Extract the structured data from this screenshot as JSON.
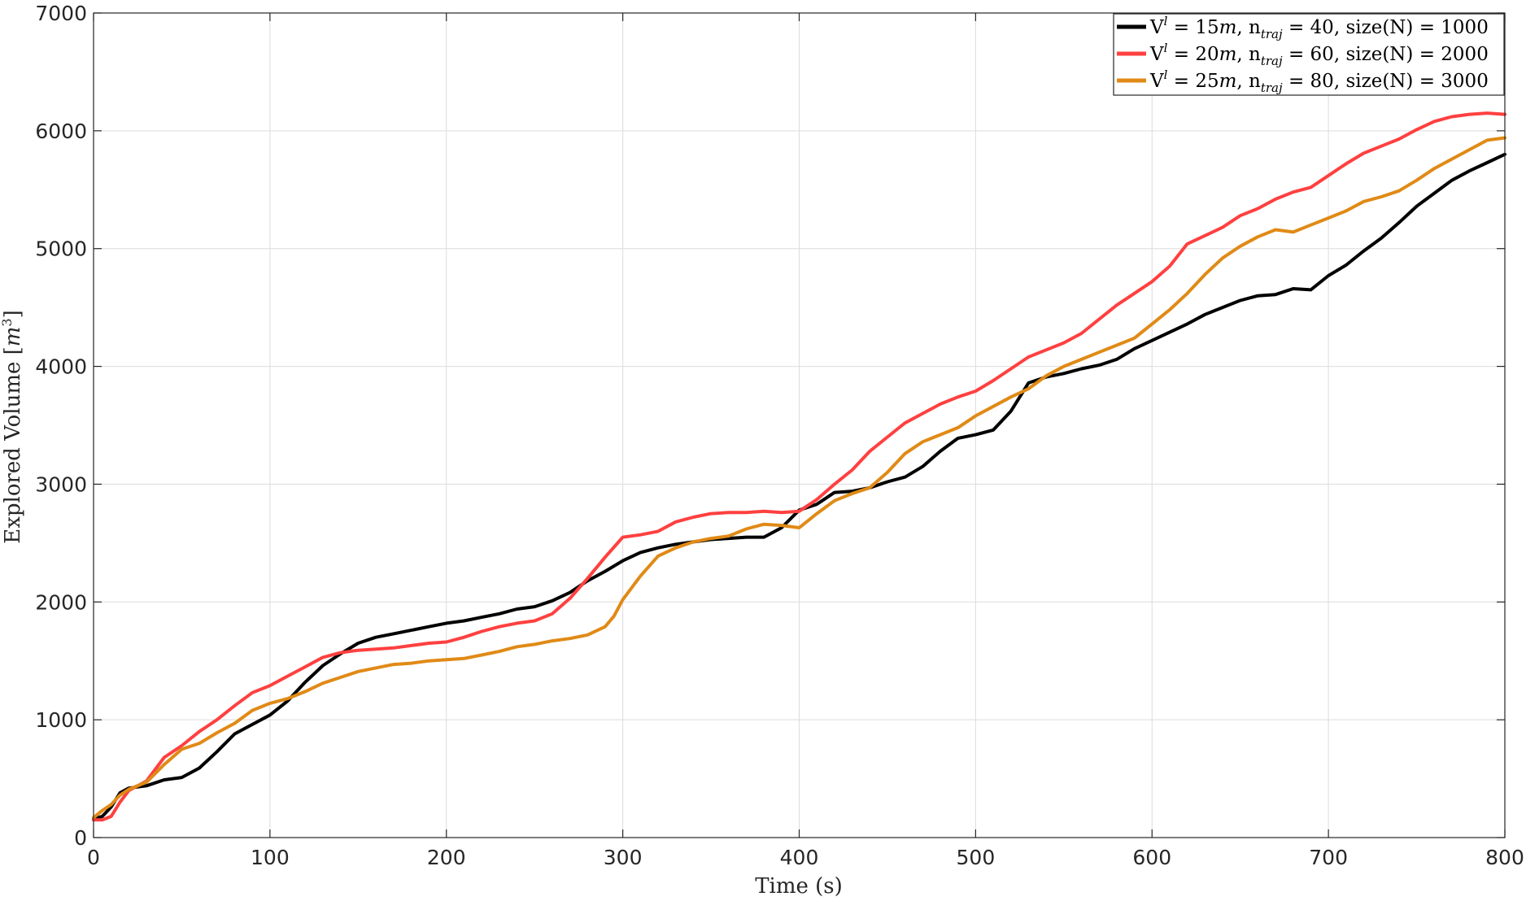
{
  "chart_data": {
    "type": "line",
    "xlabel": "Time (s)",
    "ylabel": "Explored Volume [m3]",
    "ylabel_parts": {
      "text": "Explored Volume [",
      "var": "m",
      "sup": "3",
      "close": "]"
    },
    "xlim": [
      0,
      800
    ],
    "ylim": [
      0,
      7000
    ],
    "xticks": [
      0,
      100,
      200,
      300,
      400,
      500,
      600,
      700,
      800
    ],
    "yticks": [
      0,
      1000,
      2000,
      3000,
      4000,
      5000,
      6000,
      7000
    ],
    "grid": true,
    "legend_position": "top-right",
    "series": [
      {
        "name": "V^l = 15m, n_traj = 40, size(N) = 1000",
        "legend": {
          "v": "V",
          "vsup": "l",
          "veq": " = 15",
          "unit": "m",
          "n": ", n",
          "nsub": "traj",
          "rest": " = 40, size(N) = 1000"
        },
        "color": "#000000",
        "x": [
          0,
          5,
          10,
          15,
          20,
          30,
          40,
          50,
          60,
          70,
          80,
          90,
          100,
          110,
          120,
          130,
          140,
          150,
          160,
          170,
          180,
          190,
          200,
          210,
          220,
          230,
          240,
          250,
          260,
          270,
          280,
          290,
          300,
          310,
          320,
          330,
          340,
          350,
          360,
          370,
          380,
          390,
          400,
          410,
          420,
          430,
          440,
          450,
          460,
          470,
          480,
          490,
          500,
          510,
          520,
          530,
          540,
          550,
          560,
          570,
          580,
          590,
          600,
          610,
          620,
          630,
          640,
          650,
          660,
          670,
          680,
          690,
          700,
          710,
          720,
          730,
          740,
          750,
          760,
          770,
          780,
          790,
          800
        ],
        "y": [
          160,
          180,
          260,
          380,
          420,
          440,
          490,
          510,
          590,
          730,
          880,
          960,
          1040,
          1160,
          1320,
          1460,
          1560,
          1650,
          1700,
          1730,
          1760,
          1790,
          1820,
          1840,
          1870,
          1900,
          1940,
          1960,
          2010,
          2080,
          2180,
          2260,
          2350,
          2420,
          2460,
          2490,
          2510,
          2530,
          2540,
          2550,
          2550,
          2630,
          2780,
          2830,
          2930,
          2940,
          2970,
          3020,
          3060,
          3150,
          3280,
          3390,
          3420,
          3460,
          3620,
          3860,
          3910,
          3940,
          3980,
          4010,
          4060,
          4150,
          4220,
          4290,
          4360,
          4440,
          4500,
          4560,
          4600,
          4610,
          4660,
          4650,
          4770,
          4860,
          4980,
          5090,
          5220,
          5360,
          5470,
          5580,
          5660,
          5730,
          5800
        ]
      },
      {
        "name": "V^l = 20m, n_traj = 60, size(N) = 2000",
        "legend": {
          "v": "V",
          "vsup": "l",
          "veq": " = 20",
          "unit": "m",
          "n": ", n",
          "nsub": "traj",
          "rest": " = 60, size(N) = 2000"
        },
        "color": "#ff4040",
        "x": [
          0,
          5,
          10,
          15,
          20,
          30,
          40,
          50,
          60,
          70,
          80,
          90,
          100,
          110,
          120,
          130,
          140,
          150,
          160,
          170,
          180,
          190,
          200,
          210,
          220,
          230,
          240,
          250,
          260,
          270,
          280,
          290,
          300,
          310,
          320,
          330,
          340,
          350,
          360,
          370,
          380,
          390,
          400,
          410,
          420,
          430,
          440,
          450,
          460,
          470,
          480,
          490,
          500,
          510,
          520,
          530,
          540,
          550,
          560,
          570,
          580,
          590,
          600,
          610,
          620,
          630,
          640,
          650,
          660,
          670,
          680,
          690,
          700,
          710,
          720,
          730,
          740,
          750,
          760,
          770,
          780,
          790,
          800
        ],
        "y": [
          150,
          150,
          180,
          300,
          400,
          480,
          680,
          780,
          900,
          1000,
          1120,
          1230,
          1290,
          1370,
          1450,
          1530,
          1570,
          1590,
          1600,
          1610,
          1630,
          1650,
          1660,
          1700,
          1750,
          1790,
          1820,
          1840,
          1900,
          2030,
          2200,
          2380,
          2550,
          2570,
          2600,
          2680,
          2720,
          2750,
          2760,
          2760,
          2770,
          2760,
          2770,
          2870,
          3000,
          3120,
          3280,
          3400,
          3520,
          3600,
          3680,
          3740,
          3790,
          3880,
          3980,
          4080,
          4140,
          4200,
          4280,
          4400,
          4520,
          4620,
          4720,
          4850,
          5040,
          5110,
          5180,
          5280,
          5340,
          5420,
          5480,
          5520,
          5620,
          5720,
          5810,
          5870,
          5930,
          6010,
          6080,
          6120,
          6140,
          6150,
          6140
        ]
      },
      {
        "name": "V^l = 25m, n_traj = 80, size(N) = 3000",
        "legend": {
          "v": "V",
          "vsup": "l",
          "veq": " = 25",
          "unit": "m",
          "n": ", n",
          "nsub": "traj",
          "rest": " = 80, size(N) = 3000"
        },
        "color": "#e08a16",
        "x": [
          0,
          5,
          10,
          15,
          20,
          30,
          40,
          50,
          60,
          70,
          80,
          90,
          100,
          110,
          120,
          130,
          140,
          150,
          160,
          170,
          180,
          190,
          200,
          210,
          220,
          230,
          240,
          250,
          260,
          270,
          280,
          290,
          295,
          300,
          310,
          320,
          330,
          340,
          350,
          360,
          370,
          380,
          390,
          400,
          410,
          420,
          430,
          440,
          450,
          460,
          470,
          480,
          490,
          500,
          510,
          520,
          530,
          540,
          550,
          560,
          570,
          580,
          590,
          600,
          610,
          620,
          630,
          640,
          650,
          660,
          670,
          680,
          690,
          700,
          710,
          720,
          730,
          740,
          750,
          760,
          770,
          780,
          790,
          800
        ],
        "y": [
          170,
          230,
          280,
          360,
          410,
          470,
          620,
          750,
          800,
          890,
          970,
          1080,
          1140,
          1180,
          1240,
          1310,
          1360,
          1410,
          1440,
          1470,
          1480,
          1500,
          1510,
          1520,
          1550,
          1580,
          1620,
          1640,
          1670,
          1690,
          1720,
          1790,
          1880,
          2020,
          2220,
          2390,
          2460,
          2510,
          2540,
          2560,
          2620,
          2660,
          2650,
          2630,
          2750,
          2860,
          2920,
          2970,
          3100,
          3260,
          3360,
          3420,
          3480,
          3580,
          3660,
          3740,
          3810,
          3920,
          4000,
          4060,
          4120,
          4180,
          4240,
          4360,
          4480,
          4620,
          4780,
          4920,
          5020,
          5100,
          5160,
          5140,
          5200,
          5260,
          5320,
          5400,
          5440,
          5490,
          5580,
          5680,
          5760,
          5840,
          5920,
          5940
        ]
      }
    ]
  }
}
